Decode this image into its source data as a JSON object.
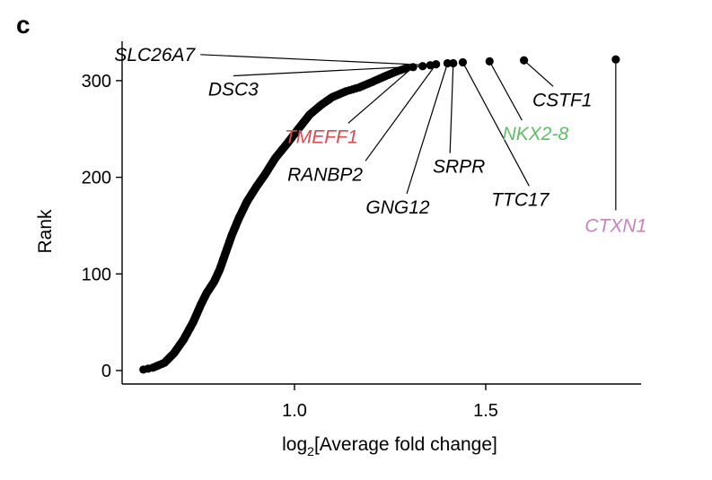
{
  "panel_label": "c",
  "chart_data": {
    "type": "scatter",
    "title": "",
    "xlabel_main": "log",
    "xlabel_sub": "2",
    "xlabel_rest": "[Average fold change]",
    "xlabel": "log2[Average fold change]",
    "ylabel": "Rank",
    "xlim": [
      0.565,
      1.92
    ],
    "ylim": [
      -10,
      343
    ],
    "x_ticks": [
      1.0,
      1.5
    ],
    "x_tick_labels": [
      "1.0",
      "1.5"
    ],
    "y_ticks": [
      0,
      100,
      200,
      300
    ],
    "y_tick_labels": [
      "0",
      "100",
      "200",
      "300"
    ],
    "grid": false,
    "legend": "none",
    "curve_anchor_points": [
      [
        0.605,
        1
      ],
      [
        0.63,
        3
      ],
      [
        0.66,
        8
      ],
      [
        0.685,
        18
      ],
      [
        0.71,
        32
      ],
      [
        0.735,
        50
      ],
      [
        0.755,
        68
      ],
      [
        0.77,
        80
      ],
      [
        0.79,
        92
      ],
      [
        0.805,
        105
      ],
      [
        0.82,
        122
      ],
      [
        0.836,
        140
      ],
      [
        0.855,
        158
      ],
      [
        0.876,
        175
      ],
      [
        0.9,
        190
      ],
      [
        0.923,
        203
      ],
      [
        0.95,
        220
      ],
      [
        0.981,
        235
      ],
      [
        1.01,
        250
      ],
      [
        1.04,
        265
      ],
      [
        1.07,
        275
      ],
      [
        1.099,
        283
      ],
      [
        1.135,
        289
      ],
      [
        1.169,
        293
      ],
      [
        1.205,
        299
      ],
      [
        1.239,
        305
      ],
      [
        1.27,
        310
      ],
      [
        1.293,
        313
      ]
    ],
    "n_points": 322,
    "labeled_points": [
      {
        "gene": "TMEFF1",
        "x": 1.31,
        "y": 314,
        "color": "#e0474c",
        "label_x": 1.07,
        "label_y": 243
      },
      {
        "gene": "DSC3",
        "x": 1.335,
        "y": 315,
        "color": "#000000",
        "label_x": 0.84,
        "label_y": 292
      },
      {
        "gene": "SLC26A7",
        "x": 1.355,
        "y": 316,
        "color": "#000000",
        "label_x": 0.74,
        "label_y": 327
      },
      {
        "gene": "RANBP2",
        "x": 1.37,
        "y": 317,
        "color": "#000000",
        "label_x": 1.08,
        "label_y": 204
      },
      {
        "gene": "GNG12",
        "x": 1.4,
        "y": 318,
        "color": "#000000",
        "label_x": 1.27,
        "label_y": 170
      },
      {
        "gene": "SRPR",
        "x": 1.415,
        "y": 318,
        "color": "#000000",
        "label_x": 1.43,
        "label_y": 212
      },
      {
        "gene": "TTC17",
        "x": 1.44,
        "y": 319,
        "color": "#000000",
        "label_x": 1.59,
        "label_y": 178
      },
      {
        "gene": "NKX2-8",
        "x": 1.51,
        "y": 320,
        "color": "#5fbf64",
        "label_x": 1.63,
        "label_y": 246
      },
      {
        "gene": "CSTF1",
        "x": 1.6,
        "y": 321,
        "color": "#000000",
        "label_x": 1.7,
        "label_y": 281
      },
      {
        "gene": "CTXN1",
        "x": 1.84,
        "y": 322,
        "color": "#c882c0",
        "label_x": 1.84,
        "label_y": 151
      }
    ]
  }
}
